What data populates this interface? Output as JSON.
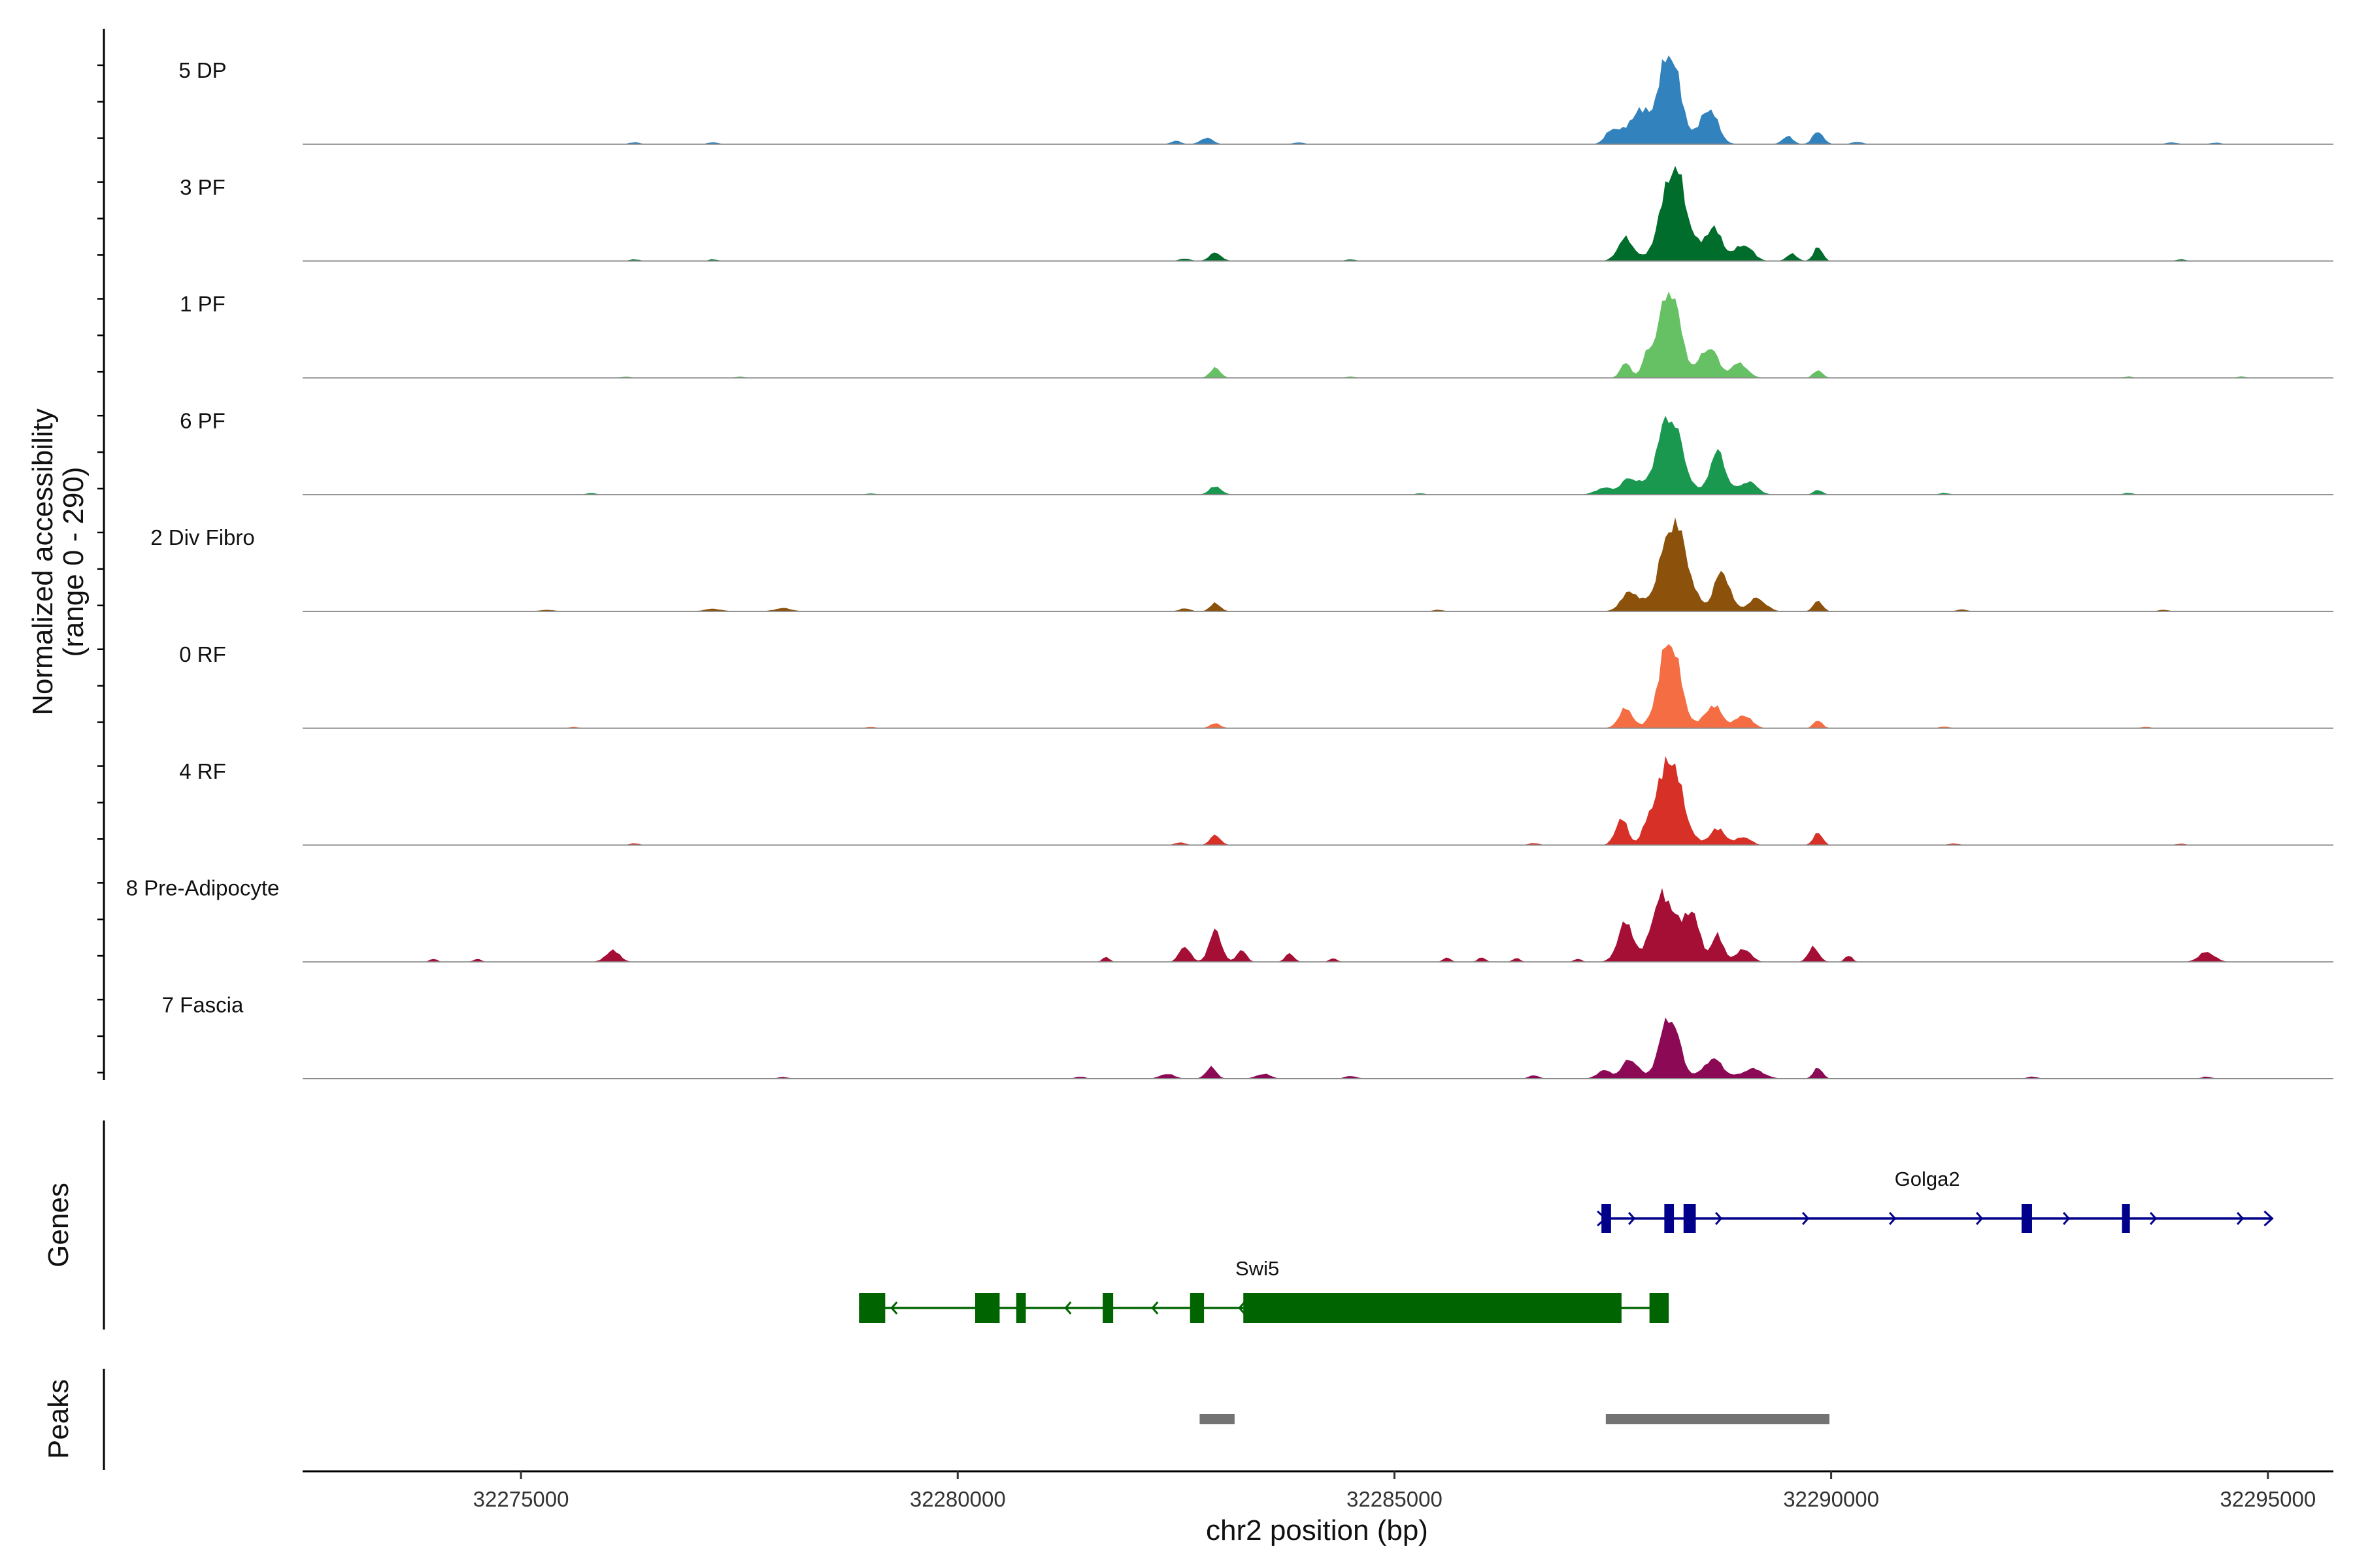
{
  "chart_data": {
    "type": "area",
    "subtype": "genome-coverage-plot",
    "title": "",
    "ylabel_line1": "Normalized accessibility",
    "ylabel_line2": "(range 0 - 290)",
    "y_range": [
      0,
      290
    ],
    "xlabel": "chr2 position (bp)",
    "x_range": [
      32272500,
      32295750
    ],
    "x_ticks": [
      32275000,
      32280000,
      32285000,
      32290000,
      32295000
    ],
    "x_tick_labels": [
      "32275000",
      "32280000",
      "32285000",
      "32290000",
      "32295000"
    ],
    "genes_label": "Genes",
    "peaks_label": "Peaks",
    "tracks": [
      {
        "name": "5 DP",
        "color": "#3182bd",
        "peaks": [
          [
            32288150,
            280,
            120
          ],
          [
            32287800,
            100,
            120
          ],
          [
            32288600,
            110,
            100
          ],
          [
            32287500,
            45,
            80
          ],
          [
            32289500,
            25,
            60
          ],
          [
            32289850,
            40,
            60
          ],
          [
            32282850,
            20,
            70
          ],
          [
            32282500,
            10,
            60
          ],
          [
            32276300,
            6,
            60
          ],
          [
            32277200,
            6,
            60
          ],
          [
            32283900,
            6,
            60
          ],
          [
            32290300,
            8,
            60
          ],
          [
            32293900,
            6,
            60
          ],
          [
            32294400,
            5,
            60
          ]
        ]
      },
      {
        "name": "3 PF",
        "color": "#006d2c",
        "peaks": [
          [
            32288200,
            285,
            140
          ],
          [
            32287650,
            70,
            90
          ],
          [
            32288650,
            100,
            100
          ],
          [
            32289000,
            50,
            100
          ],
          [
            32289550,
            22,
            60
          ],
          [
            32289850,
            45,
            50
          ],
          [
            32282950,
            25,
            70
          ],
          [
            32282600,
            8,
            60
          ],
          [
            32276300,
            5,
            60
          ],
          [
            32277200,
            5,
            60
          ],
          [
            32284500,
            5,
            60
          ],
          [
            32294000,
            5,
            60
          ]
        ]
      },
      {
        "name": "1 PF",
        "color": "#66c164",
        "peaks": [
          [
            32288150,
            270,
            120
          ],
          [
            32287650,
            45,
            60
          ],
          [
            32287900,
            60,
            60
          ],
          [
            32288600,
            95,
            100
          ],
          [
            32288950,
            45,
            90
          ],
          [
            32289850,
            25,
            50
          ],
          [
            32282950,
            30,
            60
          ],
          [
            32276200,
            4,
            60
          ],
          [
            32277500,
            4,
            60
          ],
          [
            32284500,
            4,
            60
          ],
          [
            32293400,
            4,
            60
          ],
          [
            32294700,
            4,
            60
          ]
        ]
      },
      {
        "name": "6 PF",
        "color": "#1a9850",
        "peaks": [
          [
            32288150,
            240,
            140
          ],
          [
            32287700,
            50,
            100
          ],
          [
            32287400,
            20,
            100
          ],
          [
            32288700,
            130,
            90
          ],
          [
            32289050,
            40,
            100
          ],
          [
            32289850,
            15,
            50
          ],
          [
            32282950,
            25,
            70
          ],
          [
            32275800,
            5,
            60
          ],
          [
            32279000,
            4,
            60
          ],
          [
            32285300,
            4,
            60
          ],
          [
            32291300,
            5,
            60
          ],
          [
            32293400,
            5,
            60
          ]
        ]
      },
      {
        "name": "2 Div Fibro",
        "color": "#8c510a",
        "peaks": [
          [
            32288200,
            270,
            150
          ],
          [
            32287700,
            60,
            100
          ],
          [
            32288750,
            120,
            90
          ],
          [
            32289150,
            40,
            100
          ],
          [
            32289850,
            35,
            50
          ],
          [
            32282950,
            25,
            60
          ],
          [
            32282600,
            10,
            60
          ],
          [
            32277200,
            8,
            100
          ],
          [
            32278000,
            10,
            100
          ],
          [
            32275300,
            5,
            80
          ],
          [
            32285500,
            5,
            60
          ],
          [
            32291500,
            6,
            60
          ],
          [
            32293800,
            5,
            60
          ]
        ]
      },
      {
        "name": "0 RF",
        "color": "#f46d43",
        "peaks": [
          [
            32288150,
            270,
            120
          ],
          [
            32287650,
            60,
            80
          ],
          [
            32288650,
            70,
            100
          ],
          [
            32289000,
            40,
            90
          ],
          [
            32289850,
            25,
            50
          ],
          [
            32282950,
            15,
            60
          ],
          [
            32275600,
            4,
            60
          ],
          [
            32279000,
            4,
            60
          ],
          [
            32291300,
            5,
            60
          ],
          [
            32293600,
            4,
            60
          ]
        ]
      },
      {
        "name": "4 RF",
        "color": "#d73027",
        "peaks": [
          [
            32288150,
            265,
            140
          ],
          [
            32287600,
            80,
            70
          ],
          [
            32287900,
            40,
            60
          ],
          [
            32288700,
            50,
            90
          ],
          [
            32289000,
            25,
            80
          ],
          [
            32289850,
            40,
            50
          ],
          [
            32282950,
            30,
            60
          ],
          [
            32282550,
            8,
            60
          ],
          [
            32276300,
            5,
            60
          ],
          [
            32286600,
            6,
            60
          ],
          [
            32291400,
            5,
            60
          ],
          [
            32294000,
            4,
            60
          ]
        ]
      },
      {
        "name": "8 Pre-Adipocyte",
        "color": "#a50f35",
        "peaks": [
          [
            32288100,
            200,
            120
          ],
          [
            32287650,
            120,
            90
          ],
          [
            32288400,
            150,
            90
          ],
          [
            32287950,
            45,
            60
          ],
          [
            32288700,
            80,
            70
          ],
          [
            32289000,
            40,
            80
          ],
          [
            32289800,
            45,
            60
          ],
          [
            32290200,
            20,
            40
          ],
          [
            32282950,
            95,
            70
          ],
          [
            32282600,
            50,
            60
          ],
          [
            32283250,
            40,
            50
          ],
          [
            32281700,
            15,
            40
          ],
          [
            32283800,
            25,
            50
          ],
          [
            32284300,
            12,
            40
          ],
          [
            32285600,
            15,
            40
          ],
          [
            32286000,
            15,
            40
          ],
          [
            32286400,
            12,
            40
          ],
          [
            32287100,
            10,
            40
          ],
          [
            32276050,
            35,
            80
          ],
          [
            32274000,
            10,
            40
          ],
          [
            32274500,
            10,
            40
          ],
          [
            32294300,
            30,
            90
          ]
        ]
      },
      {
        "name": "7 Fascia",
        "color": "#8c0a55",
        "peaks": [
          [
            32288150,
            190,
            110
          ],
          [
            32287700,
            60,
            90
          ],
          [
            32287400,
            25,
            80
          ],
          [
            32288650,
            60,
            110
          ],
          [
            32289100,
            30,
            120
          ],
          [
            32289850,
            35,
            50
          ],
          [
            32282900,
            35,
            60
          ],
          [
            32282400,
            15,
            80
          ],
          [
            32283500,
            15,
            80
          ],
          [
            32284500,
            8,
            70
          ],
          [
            32286600,
            10,
            60
          ],
          [
            32281400,
            6,
            60
          ],
          [
            32278000,
            5,
            60
          ],
          [
            32292300,
            6,
            60
          ],
          [
            32294300,
            6,
            60
          ]
        ]
      }
    ],
    "genes": [
      {
        "name": "Golga2",
        "strand": "+",
        "color": "#00008b",
        "start": 32287370,
        "end": 32295050,
        "exons": [
          [
            32287370,
            32287480
          ],
          [
            32288090,
            32288200
          ],
          [
            32288310,
            32288450
          ],
          [
            32292180,
            32292300
          ],
          [
            32293330,
            32293420
          ]
        ],
        "label_pos": 32291100
      },
      {
        "name": "Swi5",
        "strand": "-",
        "color": "#006400",
        "start": 32278870,
        "end": 32288140,
        "exons": [
          [
            32278870,
            32279170
          ],
          [
            32280200,
            32280480
          ],
          [
            32280670,
            32280780
          ],
          [
            32281660,
            32281780
          ],
          [
            32282660,
            32282820
          ],
          [
            32283270,
            32287600
          ],
          [
            32287920,
            32288140
          ]
        ],
        "label_pos": 32283430
      }
    ],
    "peak_regions": [
      [
        32282770,
        32283170
      ],
      [
        32287420,
        32289980
      ]
    ]
  }
}
